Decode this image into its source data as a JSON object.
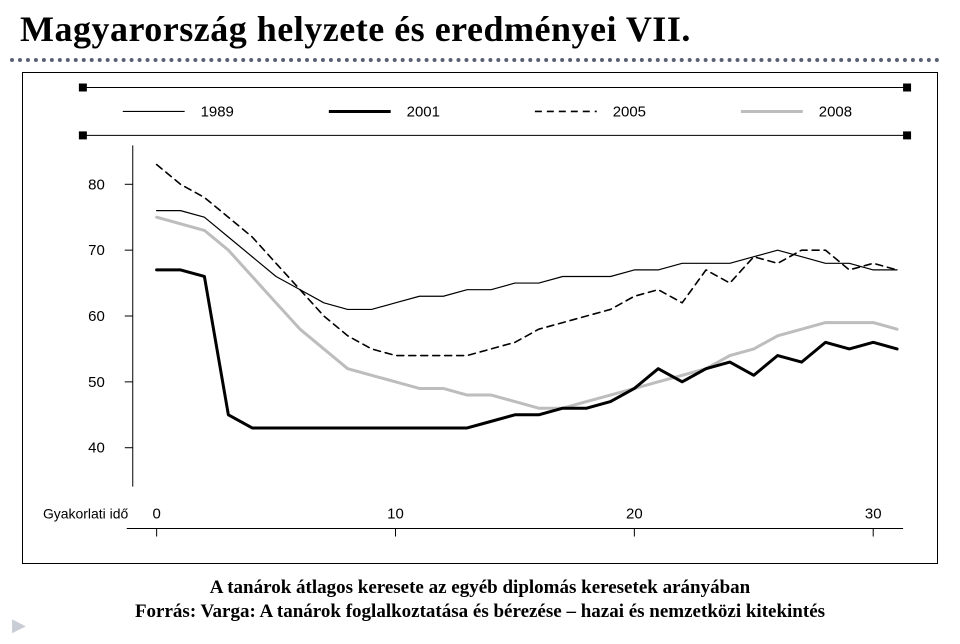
{
  "title": "Magyarország helyzete és eredményei VII.",
  "caption_line1": "A tanárok átlagos keresete az egyéb diplomás keresetek arányában",
  "caption_line2": "Forrás: Varga: A tanárok foglalkoztatása és bérezése – hazai és nemzetközi kitekintés",
  "chart": {
    "type": "line",
    "x_label": "Gyakorlati idő",
    "x_ticks": [
      0,
      10,
      20,
      30
    ],
    "y_ticks": [
      40,
      50,
      60,
      70,
      80
    ],
    "ylim": [
      35,
      85
    ],
    "xlim": [
      -1,
      31
    ],
    "background_color": "#ffffff",
    "axis_color": "#000000",
    "tick_font_size": 15,
    "tick_font_family": "Arial, sans-serif",
    "legend_font_size": 15,
    "legend_font_family": "Arial, sans-serif",
    "legend_items": [
      {
        "label": "1989",
        "style": "thin-solid",
        "color": "#000000",
        "width": 1.2,
        "dash": ""
      },
      {
        "label": "2001",
        "style": "thick-solid",
        "color": "#000000",
        "width": 3.0,
        "dash": ""
      },
      {
        "label": "2005",
        "style": "dashed",
        "color": "#000000",
        "width": 1.6,
        "dash": "7 5"
      },
      {
        "label": "2008",
        "style": "gray-solid",
        "color": "#bdbdbd",
        "width": 3.0,
        "dash": ""
      }
    ],
    "series": {
      "s1989": {
        "color": "#000000",
        "width": 1.2,
        "dash": "",
        "y": [
          76,
          76,
          75,
          72,
          69,
          66,
          64,
          62,
          61,
          61,
          62,
          63,
          63,
          64,
          64,
          65,
          65,
          66,
          66,
          66,
          67,
          67,
          68,
          68,
          68,
          69,
          70,
          69,
          68,
          68,
          67,
          67
        ]
      },
      "s2001": {
        "color": "#000000",
        "width": 3.0,
        "dash": "",
        "y": [
          67,
          67,
          66,
          45,
          43,
          43,
          43,
          43,
          43,
          43,
          43,
          43,
          43,
          43,
          44,
          45,
          45,
          46,
          46,
          47,
          49,
          52,
          50,
          52,
          53,
          51,
          54,
          53,
          56,
          55,
          56,
          55
        ]
      },
      "s2005": {
        "color": "#000000",
        "width": 1.6,
        "dash": "7 5",
        "y": [
          83,
          80,
          78,
          75,
          72,
          68,
          64,
          60,
          57,
          55,
          54,
          54,
          54,
          54,
          55,
          56,
          58,
          59,
          60,
          61,
          63,
          64,
          62,
          67,
          65,
          69,
          68,
          70,
          70,
          67,
          68,
          67
        ]
      },
      "s2008": {
        "color": "#bdbdbd",
        "width": 3.0,
        "dash": "",
        "y": [
          75,
          74,
          73,
          70,
          66,
          62,
          58,
          55,
          52,
          51,
          50,
          49,
          49,
          48,
          48,
          47,
          46,
          46,
          47,
          48,
          49,
          50,
          51,
          52,
          54,
          55,
          57,
          58,
          59,
          59,
          59,
          58
        ]
      }
    }
  }
}
